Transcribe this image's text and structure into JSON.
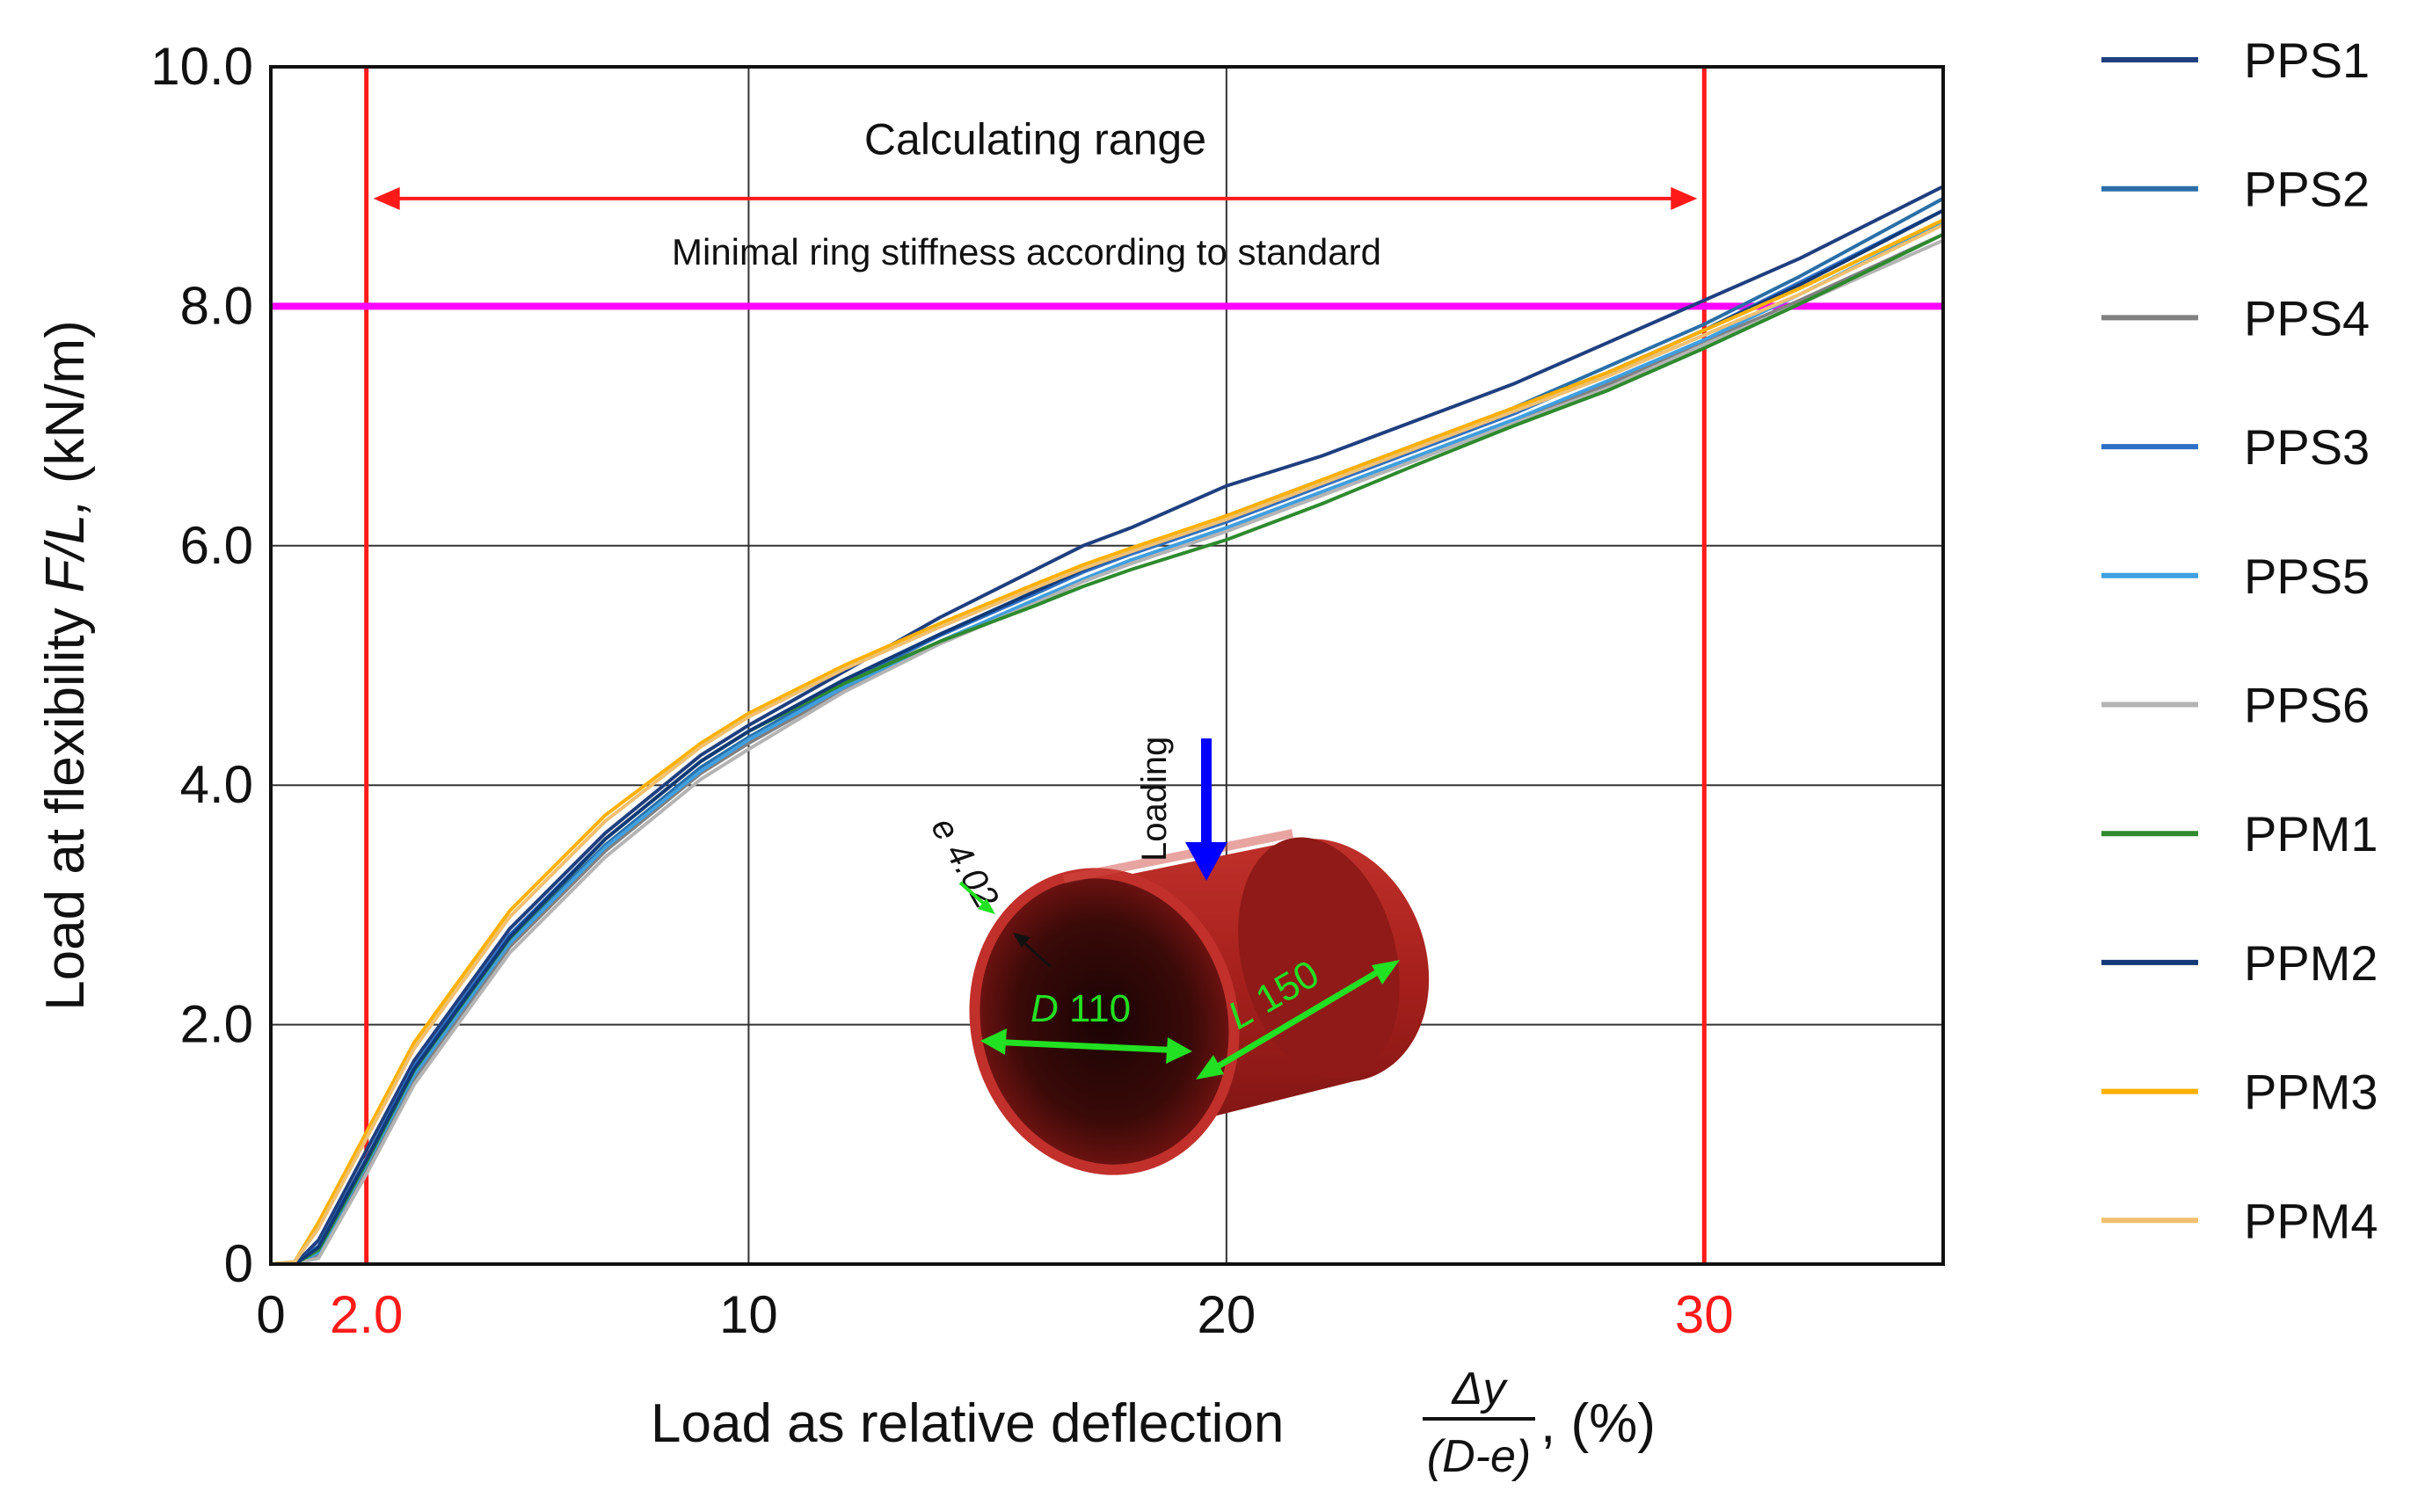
{
  "chart_data": {
    "type": "line",
    "xlabel_prefix": "Load as relative deflection",
    "xlabel_frac_num": "Δy",
    "xlabel_frac_den": "(D-e)",
    "xlabel_suffix": ", (%)",
    "ylabel_prefix": "Load at flexibility ",
    "ylabel_var": "F/L,",
    "ylabel_suffix": " (kN/m)",
    "xlim": [
      0,
      35
    ],
    "ylim": [
      0,
      10
    ],
    "grid": true,
    "legend_position": "right",
    "x_ticks": [
      {
        "value": 0,
        "label": "0",
        "color": "#111111"
      },
      {
        "value": 2,
        "label": "2.0",
        "color": "#ff1a1a"
      },
      {
        "value": 10,
        "label": "10",
        "color": "#111111"
      },
      {
        "value": 20,
        "label": "20",
        "color": "#111111"
      },
      {
        "value": 30,
        "label": "30",
        "color": "#ff1a1a"
      }
    ],
    "y_ticks": [
      {
        "value": 0,
        "label": "0"
      },
      {
        "value": 2,
        "label": "2.0"
      },
      {
        "value": 4,
        "label": "4.0"
      },
      {
        "value": 6,
        "label": "6.0"
      },
      {
        "value": 8,
        "label": "8.0"
      },
      {
        "value": 10,
        "label": "10.0"
      }
    ],
    "x_grid": [
      10,
      20
    ],
    "y_grid": [
      2,
      4,
      6,
      8
    ],
    "calculating_range": {
      "label": "Calculating range",
      "from": 2,
      "to": 30,
      "y": 8.9,
      "label_y": 9.4,
      "color": "#ff1a1a"
    },
    "standard_line": {
      "label": "Minimal ring stiffness according to standard",
      "y": 8.0,
      "label_y": 8.45,
      "color": "#ff00ff"
    },
    "series": [
      {
        "name": "PPS1",
        "color": "#1f3f7f",
        "x": [
          0,
          0.5,
          1,
          2,
          3,
          5,
          7,
          9,
          10,
          12,
          14,
          16,
          17,
          18,
          20,
          22,
          24,
          26,
          28,
          30,
          32,
          35
        ],
        "y": [
          0,
          0,
          0.2,
          0.95,
          1.7,
          2.8,
          3.6,
          4.25,
          4.5,
          4.95,
          5.4,
          5.8,
          6.0,
          6.15,
          6.5,
          6.75,
          7.05,
          7.35,
          7.7,
          8.05,
          8.4,
          9.0
        ]
      },
      {
        "name": "PPS2",
        "color": "#2a6fa8",
        "x": [
          0,
          0.5,
          1,
          2,
          3,
          5,
          7,
          9,
          10,
          12,
          14,
          16,
          17,
          18,
          20,
          22,
          24,
          26,
          28,
          30,
          32,
          35
        ],
        "y": [
          0,
          0,
          0.12,
          0.85,
          1.6,
          2.7,
          3.5,
          4.15,
          4.4,
          4.85,
          5.25,
          5.6,
          5.78,
          5.95,
          6.25,
          6.55,
          6.85,
          7.15,
          7.5,
          7.85,
          8.25,
          8.9
        ]
      },
      {
        "name": "PPS4",
        "color": "#808080",
        "x": [
          0,
          0.5,
          1,
          2,
          3,
          5,
          7,
          9,
          10,
          12,
          14,
          16,
          17,
          18,
          20,
          22,
          24,
          26,
          28,
          30,
          32,
          35
        ],
        "y": [
          0,
          0,
          0.08,
          0.8,
          1.55,
          2.65,
          3.45,
          4.1,
          4.35,
          4.8,
          5.2,
          5.55,
          5.72,
          5.88,
          6.15,
          6.45,
          6.75,
          7.05,
          7.35,
          7.7,
          8.05,
          8.6
        ]
      },
      {
        "name": "PPS3",
        "color": "#2d6fc4",
        "x": [
          0,
          0.5,
          1,
          2,
          3,
          5,
          7,
          9,
          10,
          12,
          14,
          16,
          17,
          18,
          20,
          22,
          24,
          26,
          28,
          30,
          32,
          35
        ],
        "y": [
          0,
          0,
          0.15,
          0.88,
          1.65,
          2.75,
          3.55,
          4.2,
          4.45,
          4.88,
          5.25,
          5.6,
          5.78,
          5.93,
          6.2,
          6.5,
          6.8,
          7.1,
          7.45,
          7.8,
          8.2,
          8.8
        ]
      },
      {
        "name": "PPS5",
        "color": "#3f9fe0",
        "x": [
          0,
          0.5,
          1,
          2,
          3,
          5,
          7,
          9,
          10,
          12,
          14,
          16,
          17,
          18,
          20,
          22,
          24,
          26,
          28,
          30,
          32,
          35
        ],
        "y": [
          0,
          0,
          0.1,
          0.83,
          1.58,
          2.68,
          3.48,
          4.12,
          4.38,
          4.82,
          5.2,
          5.55,
          5.72,
          5.88,
          6.15,
          6.45,
          6.75,
          7.05,
          7.38,
          7.72,
          8.1,
          8.7
        ]
      },
      {
        "name": "PPS6",
        "color": "#b4b4b4",
        "x": [
          0,
          0.5,
          1,
          2,
          3,
          5,
          7,
          9,
          10,
          12,
          14,
          16,
          17,
          18,
          20,
          22,
          24,
          26,
          28,
          30,
          32,
          35
        ],
        "y": [
          0,
          0,
          0.05,
          0.75,
          1.5,
          2.6,
          3.4,
          4.05,
          4.3,
          4.78,
          5.18,
          5.52,
          5.7,
          5.85,
          6.12,
          6.42,
          6.72,
          7.02,
          7.32,
          7.68,
          8.02,
          8.55
        ]
      },
      {
        "name": "PPM1",
        "color": "#2e8a2e",
        "x": [
          0,
          0.5,
          1,
          2,
          3,
          5,
          7,
          9,
          10,
          12,
          14,
          16,
          17,
          18,
          20,
          22,
          24,
          26,
          28,
          30,
          32,
          35
        ],
        "y": [
          0,
          0,
          0.12,
          0.85,
          1.62,
          2.72,
          3.55,
          4.2,
          4.45,
          4.85,
          5.2,
          5.5,
          5.66,
          5.8,
          6.05,
          6.35,
          6.68,
          7.0,
          7.3,
          7.65,
          8.02,
          8.6
        ]
      },
      {
        "name": "PPM2",
        "color": "#123a78",
        "x": [
          0,
          0.5,
          1,
          2,
          3,
          5,
          7,
          9,
          10,
          12,
          14,
          16,
          17,
          18,
          20,
          22,
          24,
          26,
          28,
          30,
          32,
          35
        ],
        "y": [
          0,
          0,
          0.14,
          0.87,
          1.63,
          2.73,
          3.55,
          4.2,
          4.45,
          4.88,
          5.26,
          5.62,
          5.8,
          5.95,
          6.22,
          6.52,
          6.82,
          7.12,
          7.45,
          7.8,
          8.18,
          8.8
        ]
      },
      {
        "name": "PPM3",
        "color": "#ffb000",
        "x": [
          0,
          0.5,
          1,
          2,
          3,
          5,
          7,
          9,
          10,
          12,
          14,
          16,
          17,
          18,
          20,
          22,
          24,
          26,
          28,
          30,
          32,
          35
        ],
        "y": [
          0,
          0.02,
          0.35,
          1.1,
          1.85,
          2.95,
          3.75,
          4.35,
          4.6,
          5.0,
          5.35,
          5.68,
          5.84,
          5.98,
          6.25,
          6.55,
          6.85,
          7.15,
          7.45,
          7.8,
          8.15,
          8.72
        ]
      },
      {
        "name": "PPM4",
        "color": "#f0c070",
        "x": [
          0,
          0.5,
          1,
          2,
          3,
          5,
          7,
          9,
          10,
          12,
          14,
          16,
          17,
          18,
          20,
          22,
          24,
          26,
          28,
          30,
          32,
          35
        ],
        "y": [
          0,
          0.02,
          0.3,
          1.05,
          1.8,
          2.9,
          3.7,
          4.32,
          4.57,
          4.97,
          5.32,
          5.65,
          5.81,
          5.95,
          6.22,
          6.52,
          6.82,
          7.12,
          7.42,
          7.76,
          8.1,
          8.68
        ]
      }
    ]
  },
  "inset": {
    "loading_label": "Loading",
    "thickness_label": "e 4.02",
    "diameter_var": "D",
    "diameter_value": " 110",
    "length_var": "L",
    "length_value": " 150",
    "arrow_color": "#0000ff",
    "dimension_color": "#22e022",
    "pipe_color": "#b0221e"
  }
}
